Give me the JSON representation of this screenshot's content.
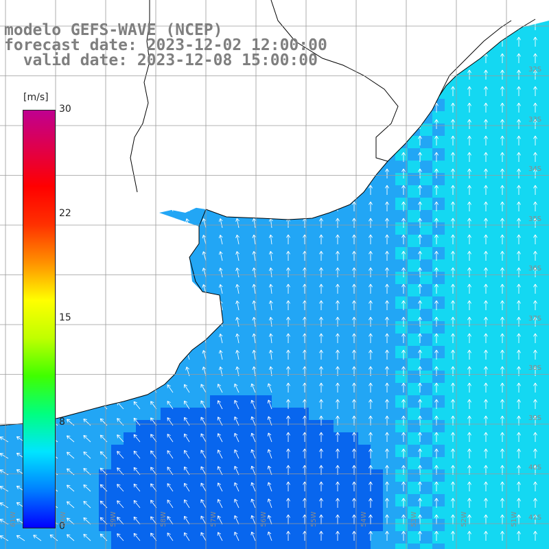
{
  "titles": {
    "line1": "modelo GEFS-WAVE (NCEP)",
    "line2": "forecast date: 2023-12-02 12:00:00",
    "line3": "  valid date: 2023-12-08 15:00:00"
  },
  "colorbar": {
    "unit": "[m/s]",
    "ticks": [
      "30",
      "22",
      "15",
      "8",
      "0"
    ],
    "colors": [
      "#0000ff",
      "#0080ff",
      "#00e5ff",
      "#00ff80",
      "#40ff00",
      "#c0ff00",
      "#ffff00",
      "#ff9000",
      "#ff3000",
      "#ff0000",
      "#e0004a",
      "#c00090"
    ]
  },
  "lat_labels": [
    "32S",
    "33S",
    "34S",
    "35S",
    "36S",
    "37S",
    "38S",
    "39S",
    "40S",
    "41S"
  ],
  "lon_labels": [
    "61W",
    "60W",
    "59W",
    "58W",
    "57W",
    "56W",
    "55W",
    "54W",
    "53W",
    "52W",
    "51W"
  ],
  "field": {
    "ocean_base": "#22a6f5",
    "ocean_light": "#14d8f2",
    "ocean_dark": "#0866ee",
    "arrow_color": "#ffffff",
    "land_color": "#ffffff",
    "coast_color": "#000000",
    "grid_color": "#9a9a9a"
  }
}
